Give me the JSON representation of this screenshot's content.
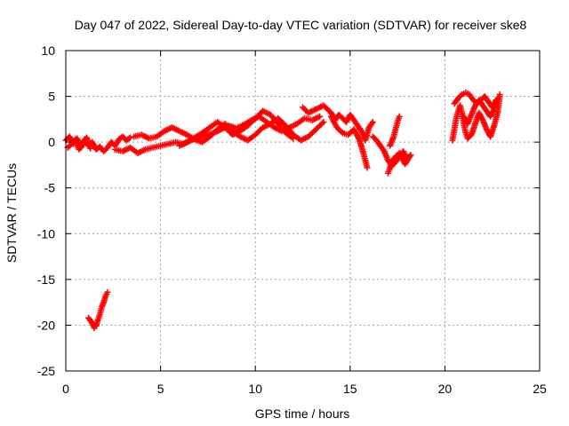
{
  "chart_data": {
    "type": "scatter",
    "title": "Day 047 of 2022, Sidereal Day-to-day VTEC variation (SDTVAR) for receiver ske8",
    "xlabel": "GPS time / hours",
    "ylabel": "SDTVAR / TECUs",
    "xlim": [
      0,
      25
    ],
    "ylim": [
      -25,
      10
    ],
    "xticks": [
      0,
      5,
      10,
      15,
      20,
      25
    ],
    "yticks": [
      -25,
      -20,
      -15,
      -10,
      -5,
      0,
      5,
      10
    ],
    "grid": true,
    "marker": "+",
    "series": [
      {
        "name": "SDTVAR",
        "color": "#ff0000",
        "segments": [
          [
            [
              0.0,
              0.2
            ],
            [
              0.2,
              0.6
            ],
            [
              0.4,
              -0.2
            ],
            [
              0.6,
              0.4
            ],
            [
              0.8,
              -0.6
            ],
            [
              1.0,
              0.3
            ],
            [
              1.2,
              -0.4
            ],
            [
              1.4,
              0.0
            ],
            [
              1.6,
              -0.8
            ],
            [
              1.8,
              -0.5
            ],
            [
              2.0,
              -1.0
            ],
            [
              2.2,
              -0.6
            ],
            [
              2.4,
              0.0
            ],
            [
              2.6,
              -0.4
            ],
            [
              2.8,
              0.3
            ],
            [
              3.0,
              0.6
            ],
            [
              3.2,
              0.2
            ],
            [
              3.4,
              0.5
            ]
          ],
          [
            [
              0.1,
              -0.6
            ],
            [
              0.3,
              -0.2
            ],
            [
              0.5,
              0.3
            ],
            [
              0.7,
              -0.8
            ],
            [
              0.9,
              -0.3
            ],
            [
              1.1,
              0.5
            ],
            [
              1.3,
              -0.7
            ]
          ],
          [
            [
              1.2,
              -19.2
            ],
            [
              1.4,
              -19.8
            ],
            [
              1.5,
              -20.3
            ],
            [
              1.6,
              -20.1
            ],
            [
              1.7,
              -19.4
            ],
            [
              1.8,
              -18.8
            ],
            [
              1.9,
              -18.0
            ],
            [
              2.0,
              -17.5
            ],
            [
              2.1,
              -16.8
            ],
            [
              2.2,
              -16.4
            ]
          ],
          [
            [
              2.6,
              -0.8
            ],
            [
              3.0,
              -1.0
            ],
            [
              3.4,
              -0.6
            ],
            [
              3.8,
              -1.2
            ],
            [
              4.2,
              -0.8
            ],
            [
              4.6,
              -0.6
            ],
            [
              5.0,
              -0.4
            ],
            [
              5.4,
              -0.2
            ],
            [
              5.8,
              0.0
            ],
            [
              6.2,
              -0.2
            ],
            [
              6.6,
              0.2
            ],
            [
              7.0,
              0.5
            ],
            [
              7.4,
              0.8
            ],
            [
              7.8,
              1.0
            ],
            [
              8.2,
              1.4
            ],
            [
              8.6,
              1.8
            ],
            [
              9.0,
              1.5
            ],
            [
              9.4,
              1.9
            ],
            [
              9.8,
              2.4
            ],
            [
              10.2,
              2.8
            ],
            [
              10.6,
              2.2
            ],
            [
              11.0,
              1.6
            ],
            [
              11.4,
              1.2
            ],
            [
              11.8,
              1.6
            ],
            [
              12.2,
              2.0
            ],
            [
              12.6,
              2.6
            ],
            [
              13.0,
              2.4
            ],
            [
              13.4,
              2.8
            ]
          ],
          [
            [
              3.6,
              0.6
            ],
            [
              4.0,
              0.8
            ],
            [
              4.4,
              0.4
            ],
            [
              4.8,
              0.6
            ],
            [
              5.2,
              1.2
            ],
            [
              5.6,
              1.6
            ],
            [
              6.0,
              1.2
            ],
            [
              6.4,
              0.8
            ],
            [
              6.8,
              0.3
            ],
            [
              7.2,
              0.0
            ],
            [
              7.6,
              0.6
            ],
            [
              8.0,
              1.4
            ],
            [
              8.4,
              2.0
            ],
            [
              8.8,
              1.2
            ],
            [
              9.2,
              0.6
            ],
            [
              9.6,
              0.2
            ],
            [
              10.0,
              0.8
            ],
            [
              10.4,
              1.6
            ],
            [
              10.8,
              2.0
            ],
            [
              11.2,
              2.6
            ],
            [
              11.6,
              1.8
            ],
            [
              12.0,
              0.8
            ],
            [
              12.4,
              0.2
            ],
            [
              12.8,
              0.6
            ],
            [
              13.2,
              1.4
            ],
            [
              13.6,
              2.2
            ]
          ],
          [
            [
              6.0,
              -0.4
            ],
            [
              6.4,
              0.0
            ],
            [
              6.8,
              0.5
            ],
            [
              7.2,
              1.0
            ],
            [
              7.6,
              1.6
            ],
            [
              8.0,
              2.2
            ],
            [
              8.4,
              1.6
            ],
            [
              8.8,
              0.8
            ],
            [
              9.2,
              1.2
            ],
            [
              9.6,
              1.8
            ],
            [
              10.0,
              2.6
            ],
            [
              10.4,
              3.4
            ],
            [
              10.8,
              3.0
            ],
            [
              11.2,
              2.0
            ],
            [
              11.6,
              1.0
            ],
            [
              12.0,
              0.4
            ]
          ],
          [
            [
              12.5,
              3.8
            ],
            [
              12.8,
              3.2
            ],
            [
              13.2,
              3.6
            ],
            [
              13.6,
              4.0
            ],
            [
              14.0,
              3.2
            ],
            [
              14.2,
              2.4
            ],
            [
              14.4,
              3.0
            ],
            [
              14.6,
              2.6
            ],
            [
              14.8,
              2.2
            ],
            [
              15.0,
              3.0
            ],
            [
              15.2,
              2.4
            ],
            [
              15.4,
              1.8
            ],
            [
              15.6,
              1.2
            ],
            [
              15.8,
              0.2
            ],
            [
              16.0,
              1.6
            ],
            [
              16.2,
              2.2
            ]
          ],
          [
            [
              14.0,
              2.8
            ],
            [
              14.3,
              1.6
            ],
            [
              14.6,
              1.0
            ],
            [
              14.9,
              0.8
            ],
            [
              15.2,
              1.4
            ],
            [
              15.5,
              0.2
            ],
            [
              15.7,
              -1.2
            ],
            [
              15.8,
              -2.0
            ],
            [
              15.9,
              -2.8
            ]
          ],
          [
            [
              16.2,
              0.6
            ],
            [
              16.4,
              0.2
            ],
            [
              16.6,
              -0.4
            ],
            [
              16.8,
              -1.0
            ],
            [
              17.0,
              -2.0
            ],
            [
              17.2,
              -2.6
            ],
            [
              17.4,
              -2.2
            ],
            [
              17.6,
              -1.6
            ],
            [
              17.8,
              -1.0
            ],
            [
              18.0,
              -1.8
            ],
            [
              18.2,
              -1.4
            ],
            [
              17.9,
              -2.4
            ],
            [
              17.6,
              -1.2
            ],
            [
              17.3,
              -1.8
            ],
            [
              17.1,
              -2.8
            ],
            [
              17.0,
              -3.4
            ]
          ],
          [
            [
              17.1,
              -0.4
            ],
            [
              17.3,
              0.6
            ],
            [
              17.4,
              1.4
            ],
            [
              17.5,
              2.2
            ],
            [
              17.6,
              2.8
            ]
          ],
          [
            [
              20.4,
              0.2
            ],
            [
              20.5,
              1.4
            ],
            [
              20.6,
              2.6
            ],
            [
              20.7,
              3.4
            ],
            [
              20.8,
              4.0
            ],
            [
              20.9,
              3.2
            ],
            [
              21.0,
              2.0
            ],
            [
              21.1,
              1.0
            ],
            [
              21.2,
              0.4
            ],
            [
              21.4,
              0.8
            ],
            [
              21.6,
              2.0
            ],
            [
              21.8,
              3.2
            ],
            [
              22.0,
              2.4
            ],
            [
              22.2,
              1.4
            ],
            [
              22.4,
              0.6
            ],
            [
              22.6,
              1.8
            ],
            [
              22.8,
              3.4
            ],
            [
              22.9,
              5.2
            ]
          ],
          [
            [
              20.5,
              4.2
            ],
            [
              20.7,
              4.8
            ],
            [
              20.9,
              5.2
            ],
            [
              21.1,
              5.4
            ],
            [
              21.3,
              5.2
            ],
            [
              21.5,
              4.6
            ],
            [
              21.7,
              4.2
            ],
            [
              21.9,
              4.6
            ],
            [
              22.1,
              5.0
            ],
            [
              22.3,
              4.4
            ],
            [
              22.5,
              3.8
            ],
            [
              22.7,
              4.6
            ]
          ],
          [
            [
              21.0,
              2.8
            ],
            [
              21.2,
              2.0
            ],
            [
              21.4,
              3.0
            ],
            [
              21.6,
              4.0
            ],
            [
              21.8,
              4.6
            ],
            [
              22.0,
              4.0
            ],
            [
              22.2,
              3.4
            ],
            [
              22.4,
              2.8
            ],
            [
              22.6,
              3.6
            ],
            [
              22.8,
              4.8
            ]
          ]
        ]
      }
    ]
  }
}
